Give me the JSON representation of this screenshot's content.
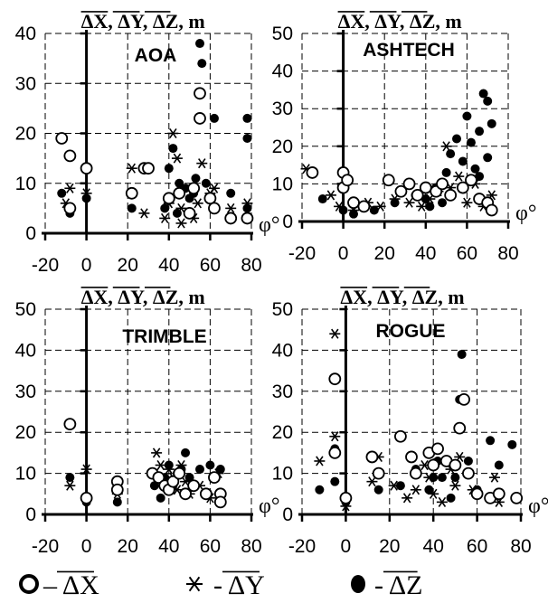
{
  "chart_data": [
    {
      "type": "scatter",
      "title": "AOA",
      "ylabel": "ΔX, ΔY, ΔZ, m",
      "xlabel": "φ°",
      "xlim": [
        -20,
        80
      ],
      "ylim": [
        0,
        40
      ],
      "xticks": [
        "-20",
        "0",
        "20",
        "40",
        "60",
        "80"
      ],
      "yticks": [
        "0",
        "10",
        "20",
        "30",
        "40"
      ],
      "grid": true,
      "series": [
        {
          "name": "ΔX",
          "marker": "open-circle",
          "points": [
            [
              -12,
              19
            ],
            [
              -8,
              15.5
            ],
            [
              0,
              13
            ],
            [
              -8,
              5
            ],
            [
              22,
              8
            ],
            [
              28,
              13
            ],
            [
              30,
              13
            ],
            [
              40,
              7
            ],
            [
              45,
              8
            ],
            [
              55,
              28
            ],
            [
              55,
              23
            ],
            [
              52,
              9
            ],
            [
              60,
              7
            ],
            [
              62,
              5
            ],
            [
              70,
              3
            ],
            [
              78,
              3
            ],
            [
              50,
              4
            ]
          ]
        },
        {
          "name": "ΔY",
          "marker": "asterisk",
          "points": [
            [
              -10,
              6
            ],
            [
              -8,
              9
            ],
            [
              0,
              8
            ],
            [
              22,
              13
            ],
            [
              28,
              4
            ],
            [
              40,
              6
            ],
            [
              42,
              20
            ],
            [
              44,
              15
            ],
            [
              46,
              5
            ],
            [
              50,
              4
            ],
            [
              52,
              3
            ],
            [
              54,
              6
            ],
            [
              56,
              14
            ],
            [
              60,
              8
            ],
            [
              62,
              9
            ],
            [
              70,
              5
            ],
            [
              78,
              6
            ],
            [
              38,
              3
            ],
            [
              46,
              2
            ]
          ]
        },
        {
          "name": "ΔZ",
          "marker": "filled-circle",
          "points": [
            [
              -12,
              8
            ],
            [
              -8,
              4
            ],
            [
              0,
              7
            ],
            [
              22,
              5
            ],
            [
              40,
              13
            ],
            [
              42,
              17
            ],
            [
              45,
              10
            ],
            [
              48,
              9
            ],
            [
              52,
              8
            ],
            [
              53,
              11
            ],
            [
              55,
              38
            ],
            [
              56,
              34
            ],
            [
              58,
              10
            ],
            [
              62,
              23
            ],
            [
              78,
              23
            ],
            [
              78,
              19
            ],
            [
              70,
              8
            ],
            [
              78,
              5
            ],
            [
              38,
              5
            ],
            [
              44,
              4
            ],
            [
              50,
              7
            ]
          ]
        }
      ]
    },
    {
      "type": "scatter",
      "title": "ASHTECH",
      "ylabel": "ΔX, ΔY, ΔZ, m",
      "xlabel": "φ°",
      "xlim": [
        -20,
        80
      ],
      "ylim": [
        0,
        50
      ],
      "xticks": [
        "-20",
        "0",
        "20",
        "40",
        "60",
        "80"
      ],
      "yticks": [
        "0",
        "10",
        "20",
        "30",
        "40",
        "50"
      ],
      "grid": true,
      "series": [
        {
          "name": "ΔX",
          "marker": "open-circle",
          "points": [
            [
              -15,
              13
            ],
            [
              0,
              13
            ],
            [
              0,
              9
            ],
            [
              2,
              11
            ],
            [
              5,
              5
            ],
            [
              10,
              4
            ],
            [
              22,
              11
            ],
            [
              28,
              8
            ],
            [
              32,
              10
            ],
            [
              36,
              7
            ],
            [
              40,
              9
            ],
            [
              45,
              8
            ],
            [
              48,
              10
            ],
            [
              52,
              7
            ],
            [
              58,
              9
            ],
            [
              62,
              11
            ],
            [
              66,
              6
            ],
            [
              70,
              5
            ],
            [
              72,
              3
            ]
          ]
        },
        {
          "name": "ΔY",
          "marker": "asterisk",
          "points": [
            [
              -18,
              14
            ],
            [
              -6,
              7
            ],
            [
              -2,
              4
            ],
            [
              5,
              3
            ],
            [
              12,
              5
            ],
            [
              18,
              4
            ],
            [
              25,
              6
            ],
            [
              32,
              5
            ],
            [
              38,
              4
            ],
            [
              42,
              6
            ],
            [
              46,
              8
            ],
            [
              50,
              20
            ],
            [
              52,
              9
            ],
            [
              56,
              12
            ],
            [
              60,
              5
            ],
            [
              64,
              10
            ],
            [
              68,
              4
            ],
            [
              72,
              7
            ]
          ]
        },
        {
          "name": "ΔZ",
          "marker": "filled-circle",
          "points": [
            [
              -10,
              6
            ],
            [
              0,
              3
            ],
            [
              5,
              2
            ],
            [
              15,
              3
            ],
            [
              25,
              5
            ],
            [
              35,
              7
            ],
            [
              40,
              6
            ],
            [
              45,
              9
            ],
            [
              50,
              13
            ],
            [
              52,
              18
            ],
            [
              55,
              22
            ],
            [
              58,
              16
            ],
            [
              60,
              28
            ],
            [
              62,
              21
            ],
            [
              64,
              14
            ],
            [
              66,
              24
            ],
            [
              68,
              34
            ],
            [
              70,
              32
            ],
            [
              72,
              26
            ],
            [
              70,
              17
            ],
            [
              66,
              12
            ],
            [
              48,
              5
            ],
            [
              42,
              4
            ]
          ]
        }
      ]
    },
    {
      "type": "scatter",
      "title": "TRIMBLE",
      "ylabel": "ΔX, ΔY, ΔZ, m",
      "xlabel": "φ°",
      "xlim": [
        -20,
        80
      ],
      "ylim": [
        0,
        50
      ],
      "xticks": [
        "-20",
        "0",
        "20",
        "40",
        "60",
        "80"
      ],
      "yticks": [
        "0",
        "10",
        "20",
        "30",
        "40",
        "50"
      ],
      "grid": true,
      "series": [
        {
          "name": "ΔX",
          "marker": "open-circle",
          "points": [
            [
              -8,
              22
            ],
            [
              0,
              4
            ],
            [
              15,
              8
            ],
            [
              15,
              6
            ],
            [
              32,
              10
            ],
            [
              35,
              9
            ],
            [
              38,
              7
            ],
            [
              40,
              6
            ],
            [
              42,
              8
            ],
            [
              45,
              10
            ],
            [
              48,
              5
            ],
            [
              52,
              7
            ],
            [
              58,
              5
            ],
            [
              62,
              9
            ],
            [
              65,
              5
            ],
            [
              65,
              3
            ]
          ]
        },
        {
          "name": "ΔY",
          "marker": "asterisk",
          "points": [
            [
              -8,
              7
            ],
            [
              0,
              11
            ],
            [
              15,
              5
            ],
            [
              34,
              15
            ],
            [
              36,
              12
            ],
            [
              38,
              8
            ],
            [
              40,
              11
            ],
            [
              42,
              9
            ],
            [
              44,
              6
            ],
            [
              46,
              12
            ],
            [
              48,
              8
            ],
            [
              50,
              5
            ],
            [
              55,
              7
            ],
            [
              60,
              4
            ],
            [
              64,
              10
            ]
          ]
        },
        {
          "name": "ΔZ",
          "marker": "filled-circle",
          "points": [
            [
              -8,
              9
            ],
            [
              0,
              3
            ],
            [
              15,
              3
            ],
            [
              33,
              7
            ],
            [
              36,
              4
            ],
            [
              38,
              9
            ],
            [
              40,
              12
            ],
            [
              42,
              7
            ],
            [
              44,
              10
            ],
            [
              46,
              11
            ],
            [
              48,
              15
            ],
            [
              50,
              9
            ],
            [
              55,
              11
            ],
            [
              60,
              12
            ],
            [
              65,
              11
            ]
          ]
        }
      ]
    },
    {
      "type": "scatter",
      "title": "ROGUE",
      "ylabel": "ΔX, ΔY, ΔZ, m",
      "xlabel": "φ°",
      "xlim": [
        -20,
        80
      ],
      "ylim": [
        0,
        50
      ],
      "xticks": [
        "-20",
        "0",
        "20",
        "40",
        "60",
        "80"
      ],
      "yticks": [
        "0",
        "10",
        "20",
        "30",
        "40",
        "50"
      ],
      "grid": true,
      "series": [
        {
          "name": "ΔX",
          "marker": "open-circle",
          "points": [
            [
              -5,
              33
            ],
            [
              -5,
              15
            ],
            [
              0,
              4
            ],
            [
              12,
              14
            ],
            [
              15,
              10
            ],
            [
              25,
              19
            ],
            [
              30,
              14
            ],
            [
              32,
              10
            ],
            [
              38,
              15
            ],
            [
              40,
              12
            ],
            [
              42,
              16
            ],
            [
              46,
              13
            ],
            [
              50,
              12
            ],
            [
              52,
              21
            ],
            [
              54,
              28
            ],
            [
              56,
              10
            ],
            [
              60,
              5
            ],
            [
              66,
              4
            ],
            [
              70,
              5
            ],
            [
              78,
              4
            ]
          ]
        },
        {
          "name": "ΔY",
          "marker": "asterisk",
          "points": [
            [
              -5,
              44
            ],
            [
              -5,
              19
            ],
            [
              -12,
              13
            ],
            [
              0,
              2
            ],
            [
              12,
              8
            ],
            [
              15,
              14
            ],
            [
              22,
              7
            ],
            [
              28,
              4
            ],
            [
              32,
              6
            ],
            [
              36,
              12
            ],
            [
              38,
              9
            ],
            [
              40,
              5
            ],
            [
              44,
              3
            ],
            [
              48,
              11
            ],
            [
              50,
              7
            ],
            [
              52,
              14
            ],
            [
              58,
              6
            ],
            [
              68,
              9
            ],
            [
              78,
              4
            ],
            [
              70,
              3
            ]
          ]
        },
        {
          "name": "ΔZ",
          "marker": "filled-circle",
          "points": [
            [
              -12,
              6
            ],
            [
              -5,
              16
            ],
            [
              -5,
              8
            ],
            [
              0,
              3
            ],
            [
              15,
              6
            ],
            [
              25,
              7
            ],
            [
              32,
              11
            ],
            [
              38,
              6
            ],
            [
              40,
              9
            ],
            [
              42,
              13
            ],
            [
              44,
              9
            ],
            [
              48,
              4
            ],
            [
              50,
              9
            ],
            [
              52,
              28
            ],
            [
              53,
              39
            ],
            [
              56,
              13
            ],
            [
              60,
              6
            ],
            [
              66,
              18
            ],
            [
              70,
              12
            ],
            [
              76,
              17
            ]
          ]
        }
      ]
    }
  ],
  "legend": [
    {
      "symbol": "open-circle",
      "text": "– ΔX"
    },
    {
      "symbol": "asterisk",
      "text": "- ΔY"
    },
    {
      "symbol": "filled-circle",
      "text": "- ΔZ"
    }
  ]
}
